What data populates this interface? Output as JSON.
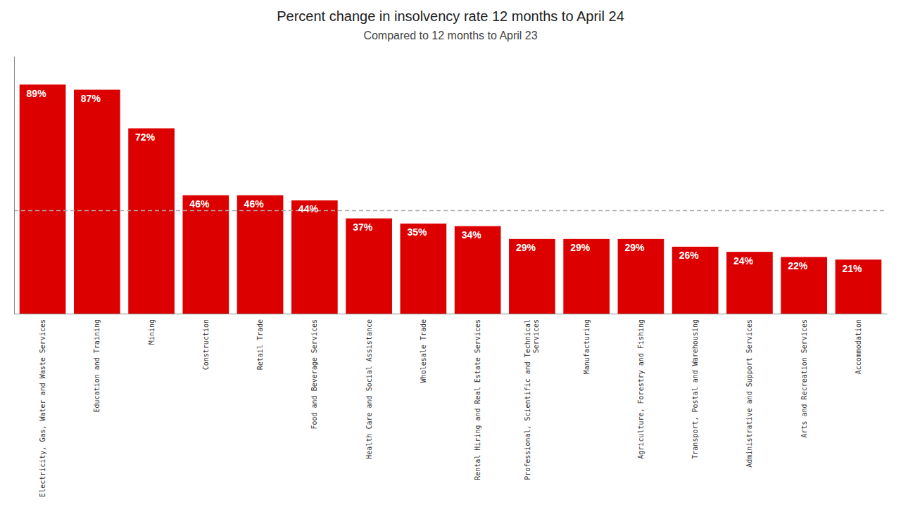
{
  "chart_data": {
    "type": "bar",
    "title": "Percent change in insolvency rate 12 months to April 24",
    "subtitle": "Compared to 12 months to April 23",
    "categories": [
      "Electricity, Gas, Water and Waste Services",
      "Education and Training",
      "Mining",
      "Construction",
      "Retail Trade",
      "Food and Beverage Services",
      "Health Care and Social Assistance",
      "Wholesale Trade",
      "Rental Hiring and Real Estate Services",
      "Professional, Scientific and Technical\nServices",
      "Manufacturing",
      "Agriculture, Forestry and Fishing",
      "Transport, Postal and Warehousing",
      "Administrative and Support Services",
      "Arts and Recreation Services",
      "Accommodation"
    ],
    "values": [
      89,
      87,
      72,
      46,
      46,
      44,
      37,
      35,
      34,
      29,
      29,
      29,
      26,
      24,
      22,
      21
    ],
    "value_labels": [
      "89%",
      "87%",
      "72%",
      "46%",
      "46%",
      "44%",
      "37%",
      "35%",
      "34%",
      "29%",
      "29%",
      "29%",
      "26%",
      "24%",
      "22%",
      "21%"
    ],
    "color": "#dd0000",
    "average": 40,
    "ylim": [
      0,
      100
    ],
    "grid": false,
    "data_labels": true,
    "tick_labels": "x"
  }
}
